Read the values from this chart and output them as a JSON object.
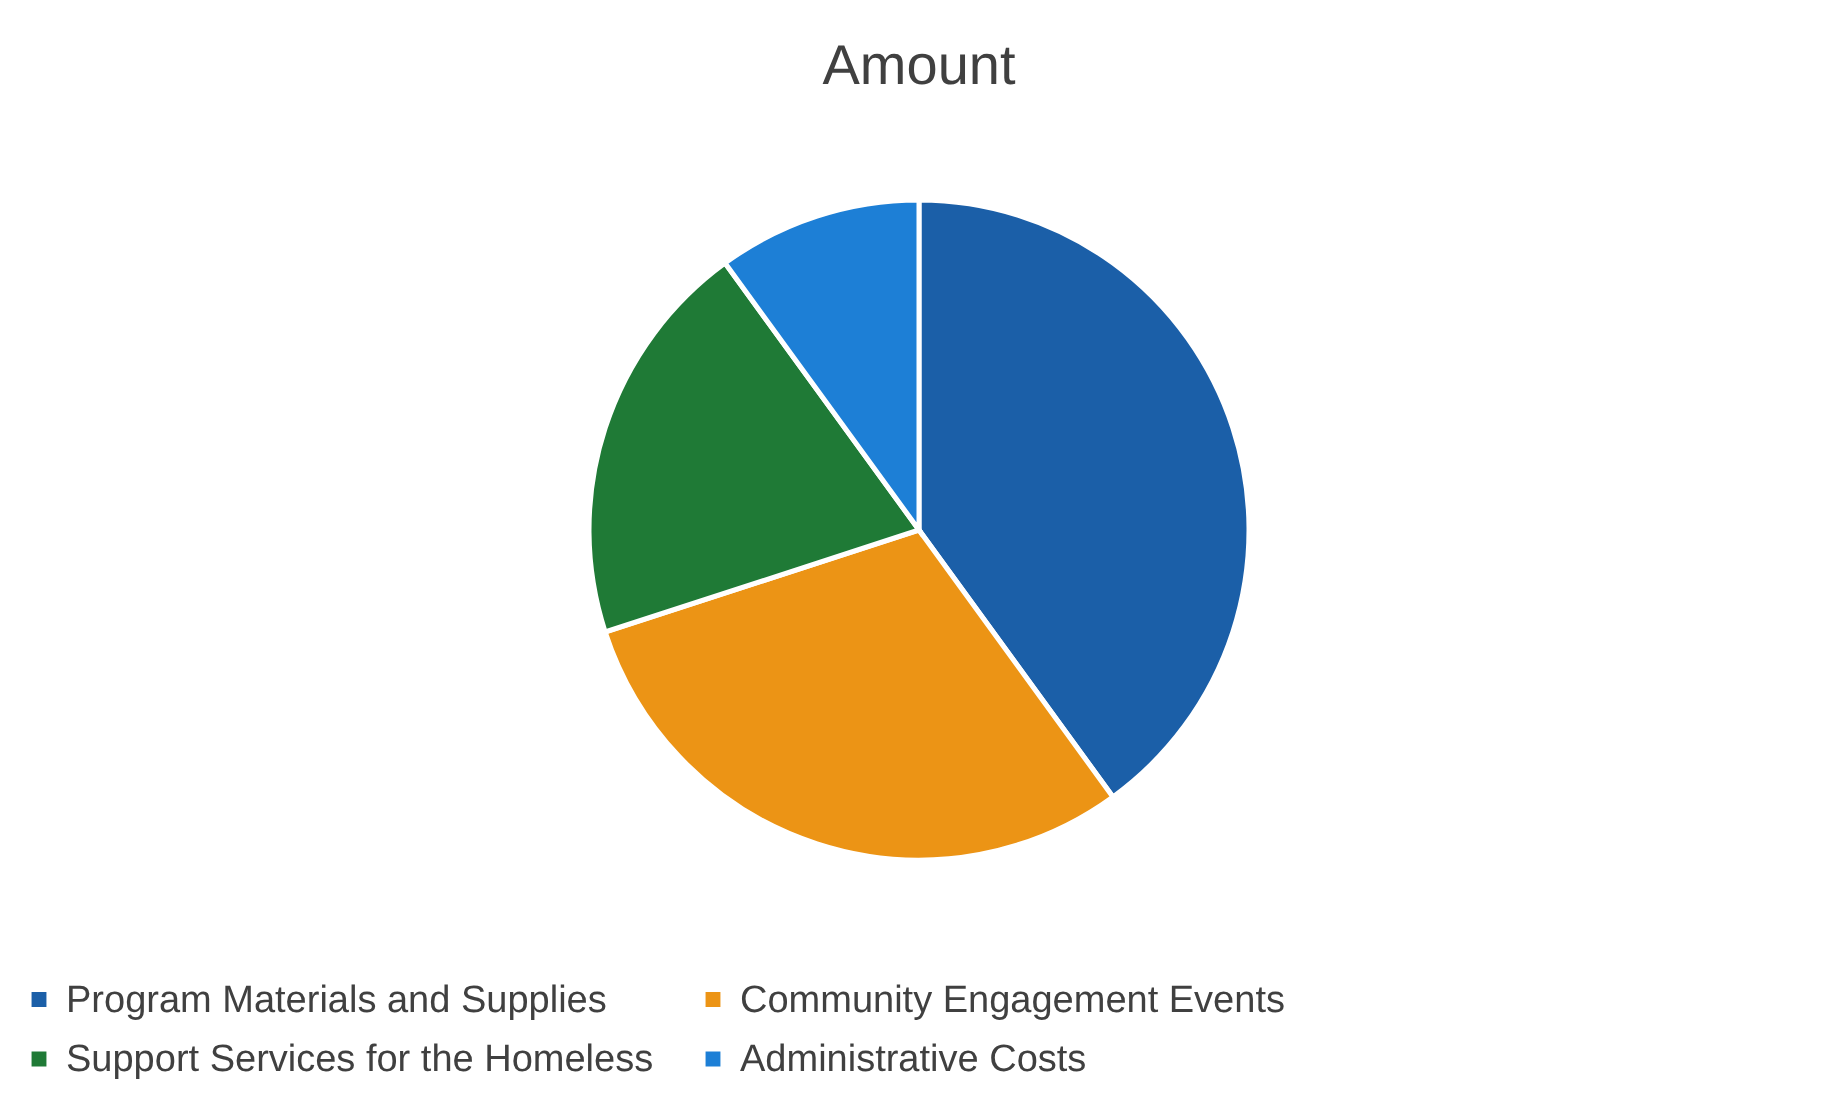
{
  "chart_data": {
    "type": "pie",
    "title": "Amount",
    "categories": [
      "Program Materials and Supplies",
      "Community Engagement Events",
      "Support Services for the Homeless",
      "Administrative Costs"
    ],
    "values": [
      40,
      30,
      20,
      10
    ],
    "colors": [
      "#1b5fa8",
      "#ec9415",
      "#1f7a36",
      "#1d7fd6"
    ],
    "legend": "bottom"
  }
}
